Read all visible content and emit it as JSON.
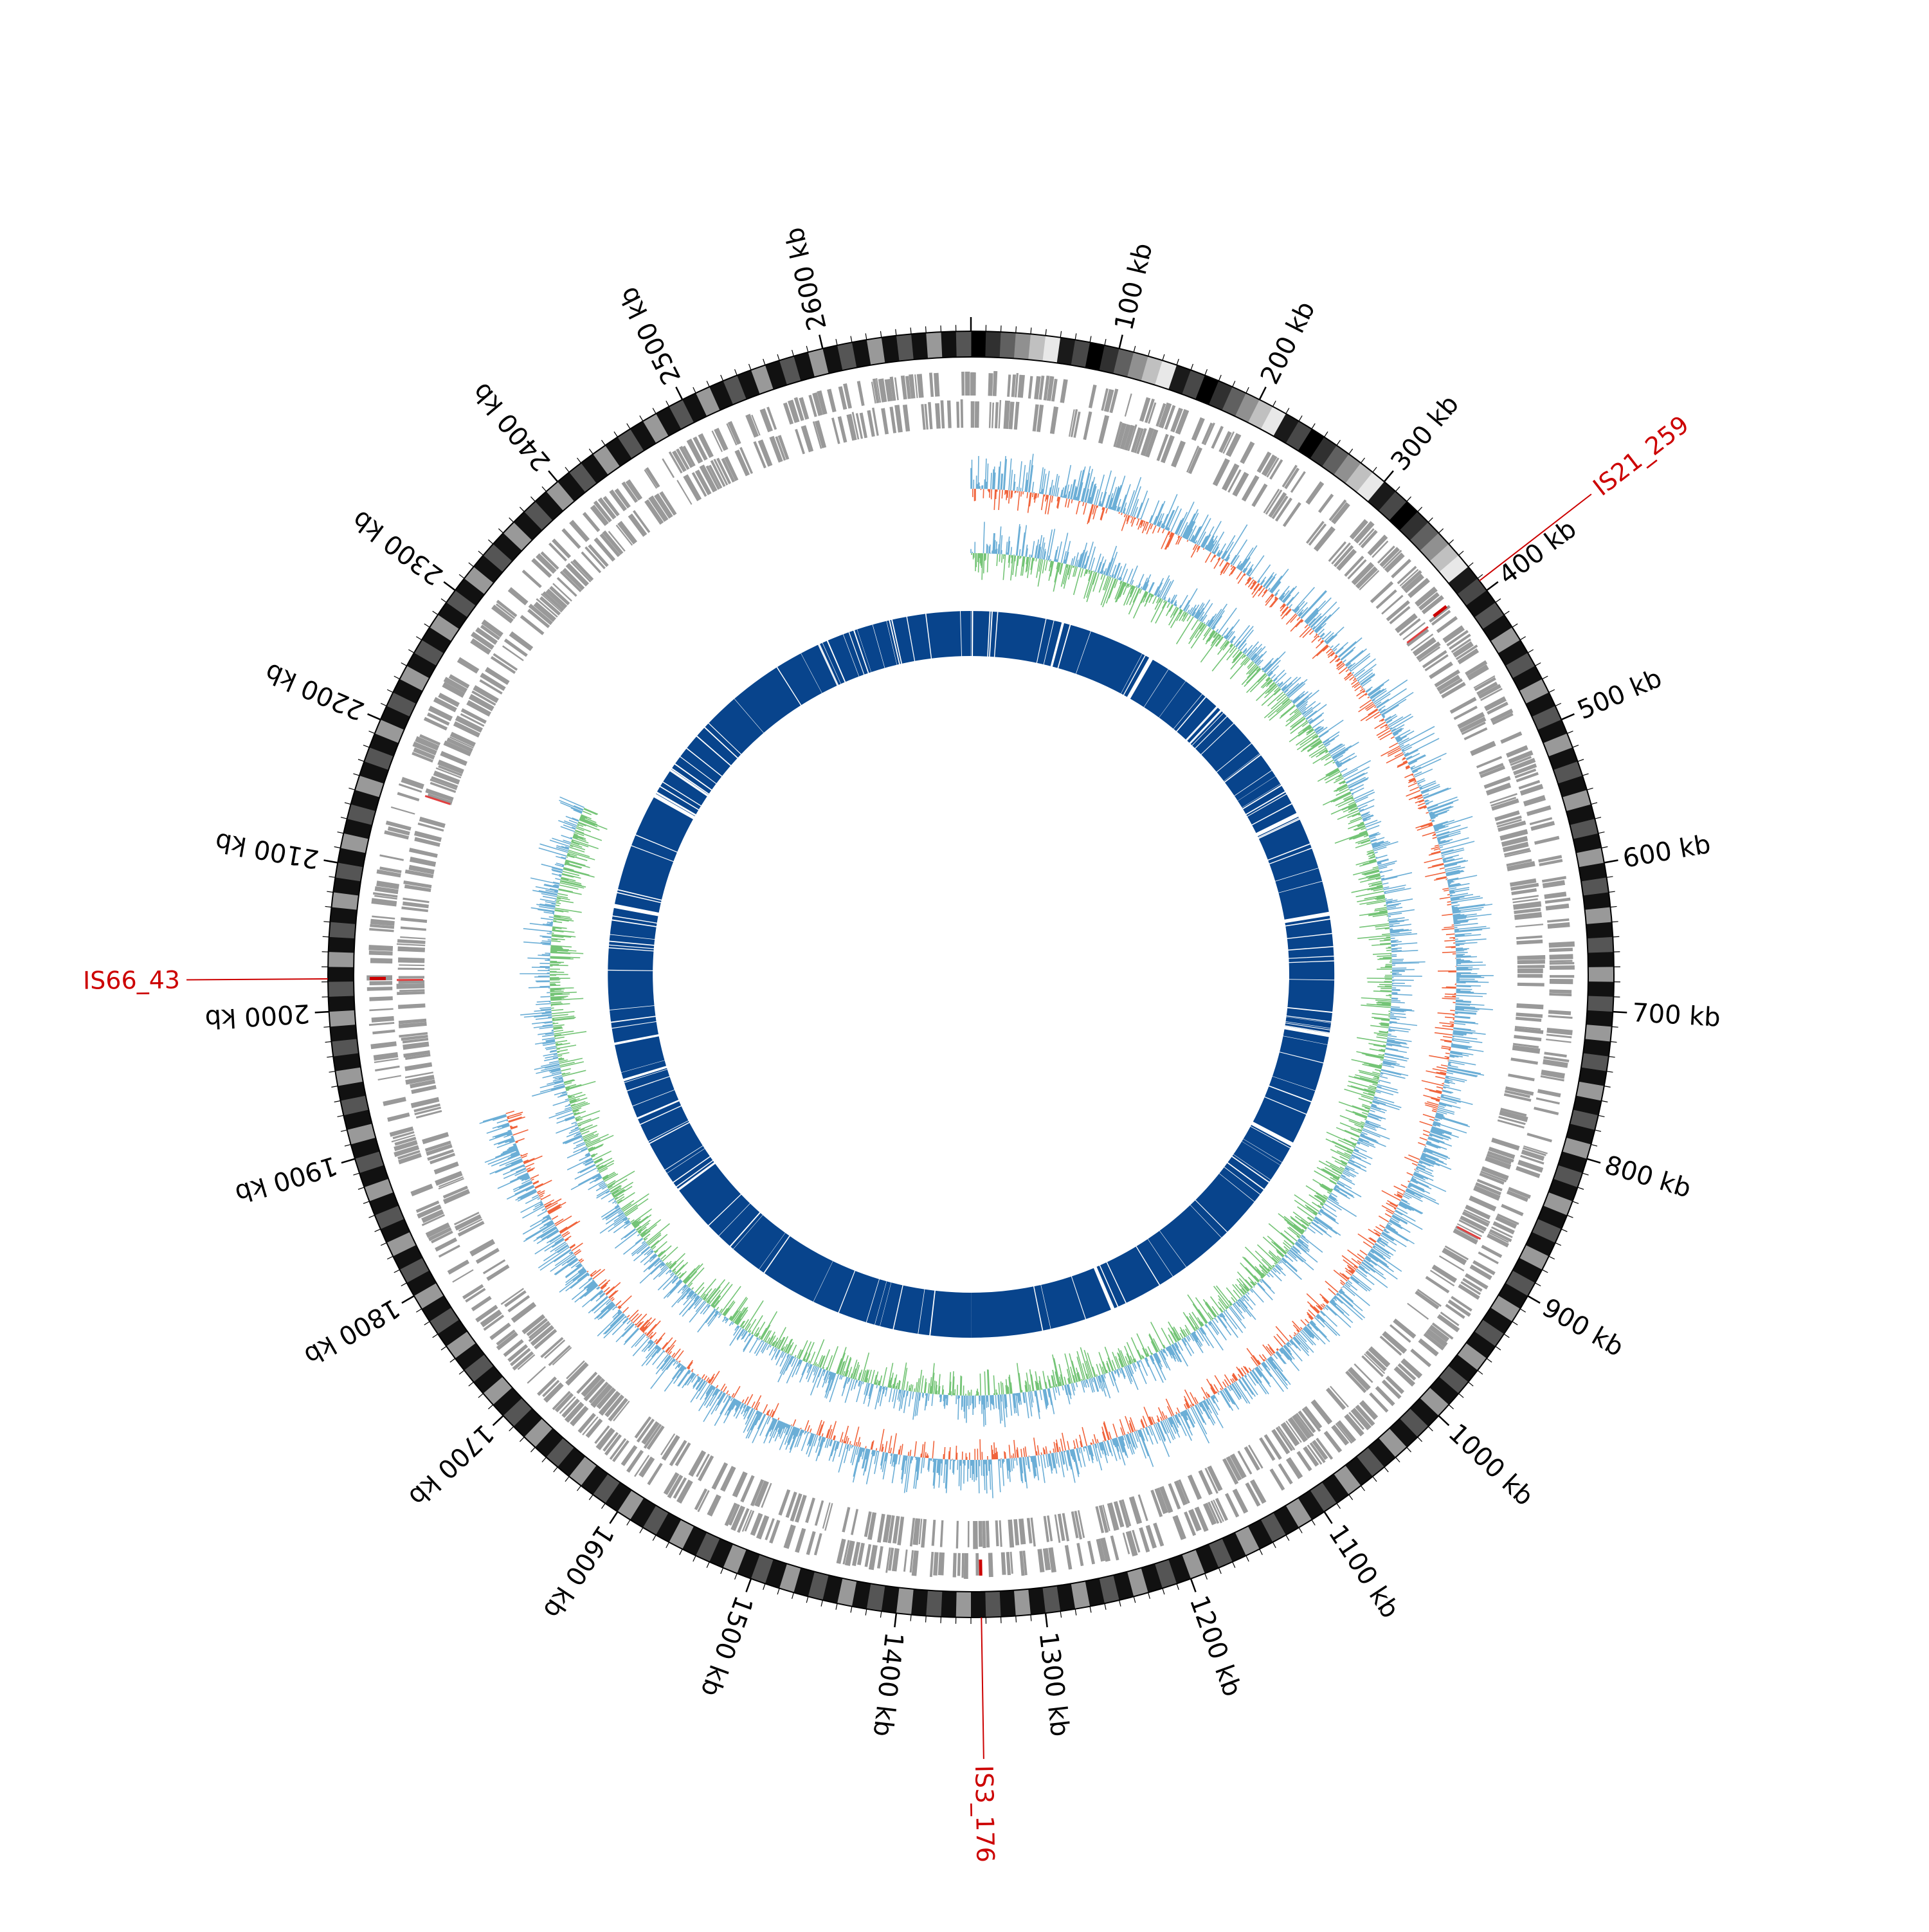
{
  "figure": {
    "type": "circular-genome-map",
    "genome_length_kb": 2700
  },
  "scale": {
    "unit_label": "kb",
    "tick_labels": [
      "100 kb",
      "200 kb",
      "300 kb",
      "400 kb",
      "500 kb",
      "600 kb",
      "700 kb",
      "800 kb",
      "900 kb",
      "1000 kb",
      "1100 kb",
      "1200 kb",
      "1300 kb",
      "1400 kb",
      "1500 kb",
      "1600 kb",
      "1700 kb",
      "1800 kb",
      "1900 kb",
      "2000 kb",
      "2100 kb",
      "2200 kb",
      "2300 kb",
      "2400 kb",
      "2500 kb",
      "2600 kb"
    ]
  },
  "colors": {
    "ideogram_dark": "#000000",
    "feature_gray": "#999999",
    "gc_skew_red": "#f0643c",
    "gc_skew_blue": "#6baed6",
    "gc_content_green": "#74c476",
    "gc_content_blue": "#6baed6",
    "inner_ring": "#08448c",
    "is_label": "#cc0000"
  },
  "insertion_sequences": [
    {
      "name": "IS21_259",
      "position_kb": 392
    },
    {
      "name": "IS3_176",
      "position_kb": 1343
    },
    {
      "name": "IS66_43",
      "position_kb": 2022
    }
  ],
  "tracks": [
    {
      "name": "ideogram"
    },
    {
      "name": "genes-forward"
    },
    {
      "name": "genes-reverse"
    },
    {
      "name": "gc-skew"
    },
    {
      "name": "gc-content"
    },
    {
      "name": "blast-coverage"
    }
  ]
}
